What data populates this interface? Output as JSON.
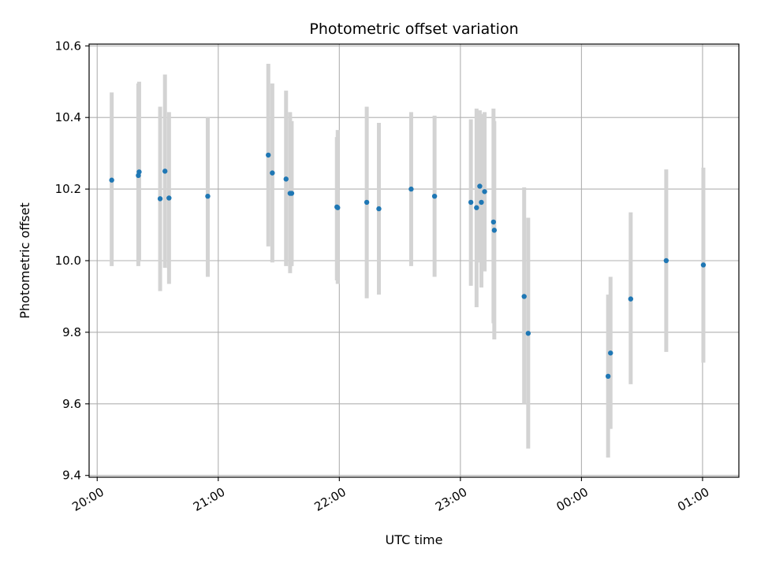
{
  "chart_data": {
    "type": "scatter",
    "title": "Photometric offset variation",
    "xlabel": "UTC time",
    "ylabel": "Photometric offset",
    "x_axis": {
      "unit": "minutes after 20:00 UTC",
      "range": [
        -4,
        318
      ],
      "ticks": [
        0,
        60,
        120,
        180,
        240,
        300
      ],
      "tick_labels": [
        "20:00",
        "21:00",
        "22:00",
        "23:00",
        "00:00",
        "01:00"
      ]
    },
    "y_axis": {
      "range": [
        9.395,
        10.605
      ],
      "ticks": [
        9.4,
        9.6,
        9.8,
        10.0,
        10.2,
        10.4,
        10.6
      ],
      "tick_labels": [
        "9.4",
        "9.6",
        "9.8",
        "10.0",
        "10.2",
        "10.4",
        "10.6"
      ]
    },
    "grid": true,
    "colors": {
      "point": "#1f77b4",
      "errorbar": "#d3d3d3",
      "grid": "#b0b0b0"
    },
    "points": [
      {
        "x": 7.2,
        "y": 10.225,
        "ylo": 9.985,
        "yhi": 10.47
      },
      {
        "x": 20.4,
        "y": 10.238,
        "ylo": 9.985,
        "yhi": 10.495
      },
      {
        "x": 20.8,
        "y": 10.248,
        "ylo": 10.0,
        "yhi": 10.5
      },
      {
        "x": 31.2,
        "y": 10.173,
        "ylo": 9.915,
        "yhi": 10.43
      },
      {
        "x": 33.6,
        "y": 10.25,
        "ylo": 9.98,
        "yhi": 10.52
      },
      {
        "x": 35.6,
        "y": 10.175,
        "ylo": 9.935,
        "yhi": 10.415
      },
      {
        "x": 54.8,
        "y": 10.18,
        "ylo": 9.955,
        "yhi": 10.4
      },
      {
        "x": 84.8,
        "y": 10.295,
        "ylo": 10.04,
        "yhi": 10.55
      },
      {
        "x": 86.8,
        "y": 10.245,
        "ylo": 9.995,
        "yhi": 10.495
      },
      {
        "x": 93.6,
        "y": 10.228,
        "ylo": 9.985,
        "yhi": 10.475
      },
      {
        "x": 95.6,
        "y": 10.188,
        "ylo": 9.965,
        "yhi": 10.415
      },
      {
        "x": 96.4,
        "y": 10.188,
        "ylo": 9.985,
        "yhi": 10.39
      },
      {
        "x": 118.8,
        "y": 10.15,
        "ylo": 9.945,
        "yhi": 10.345
      },
      {
        "x": 119.2,
        "y": 10.148,
        "ylo": 9.935,
        "yhi": 10.365
      },
      {
        "x": 133.6,
        "y": 10.163,
        "ylo": 9.895,
        "yhi": 10.43
      },
      {
        "x": 139.6,
        "y": 10.145,
        "ylo": 9.905,
        "yhi": 10.385
      },
      {
        "x": 155.6,
        "y": 10.2,
        "ylo": 9.985,
        "yhi": 10.415
      },
      {
        "x": 167.2,
        "y": 10.18,
        "ylo": 9.955,
        "yhi": 10.405
      },
      {
        "x": 185.2,
        "y": 10.163,
        "ylo": 9.93,
        "yhi": 10.395
      },
      {
        "x": 188.0,
        "y": 10.148,
        "ylo": 9.87,
        "yhi": 10.425
      },
      {
        "x": 189.6,
        "y": 10.208,
        "ylo": 9.995,
        "yhi": 10.42
      },
      {
        "x": 190.4,
        "y": 10.163,
        "ylo": 9.925,
        "yhi": 10.41
      },
      {
        "x": 192.0,
        "y": 10.193,
        "ylo": 9.97,
        "yhi": 10.415
      },
      {
        "x": 196.4,
        "y": 10.108,
        "ylo": 9.825,
        "yhi": 10.425
      },
      {
        "x": 196.8,
        "y": 10.085,
        "ylo": 9.78,
        "yhi": 10.39
      },
      {
        "x": 211.6,
        "y": 9.9,
        "ylo": 9.6,
        "yhi": 10.205
      },
      {
        "x": 213.6,
        "y": 9.797,
        "ylo": 9.475,
        "yhi": 10.12
      },
      {
        "x": 253.2,
        "y": 9.677,
        "ylo": 9.45,
        "yhi": 9.905
      },
      {
        "x": 254.4,
        "y": 9.742,
        "ylo": 9.53,
        "yhi": 9.955
      },
      {
        "x": 264.4,
        "y": 9.893,
        "ylo": 9.655,
        "yhi": 10.135
      },
      {
        "x": 282.0,
        "y": 10.0,
        "ylo": 9.745,
        "yhi": 10.255
      },
      {
        "x": 300.4,
        "y": 9.988,
        "ylo": 9.715,
        "yhi": 10.26
      }
    ]
  }
}
